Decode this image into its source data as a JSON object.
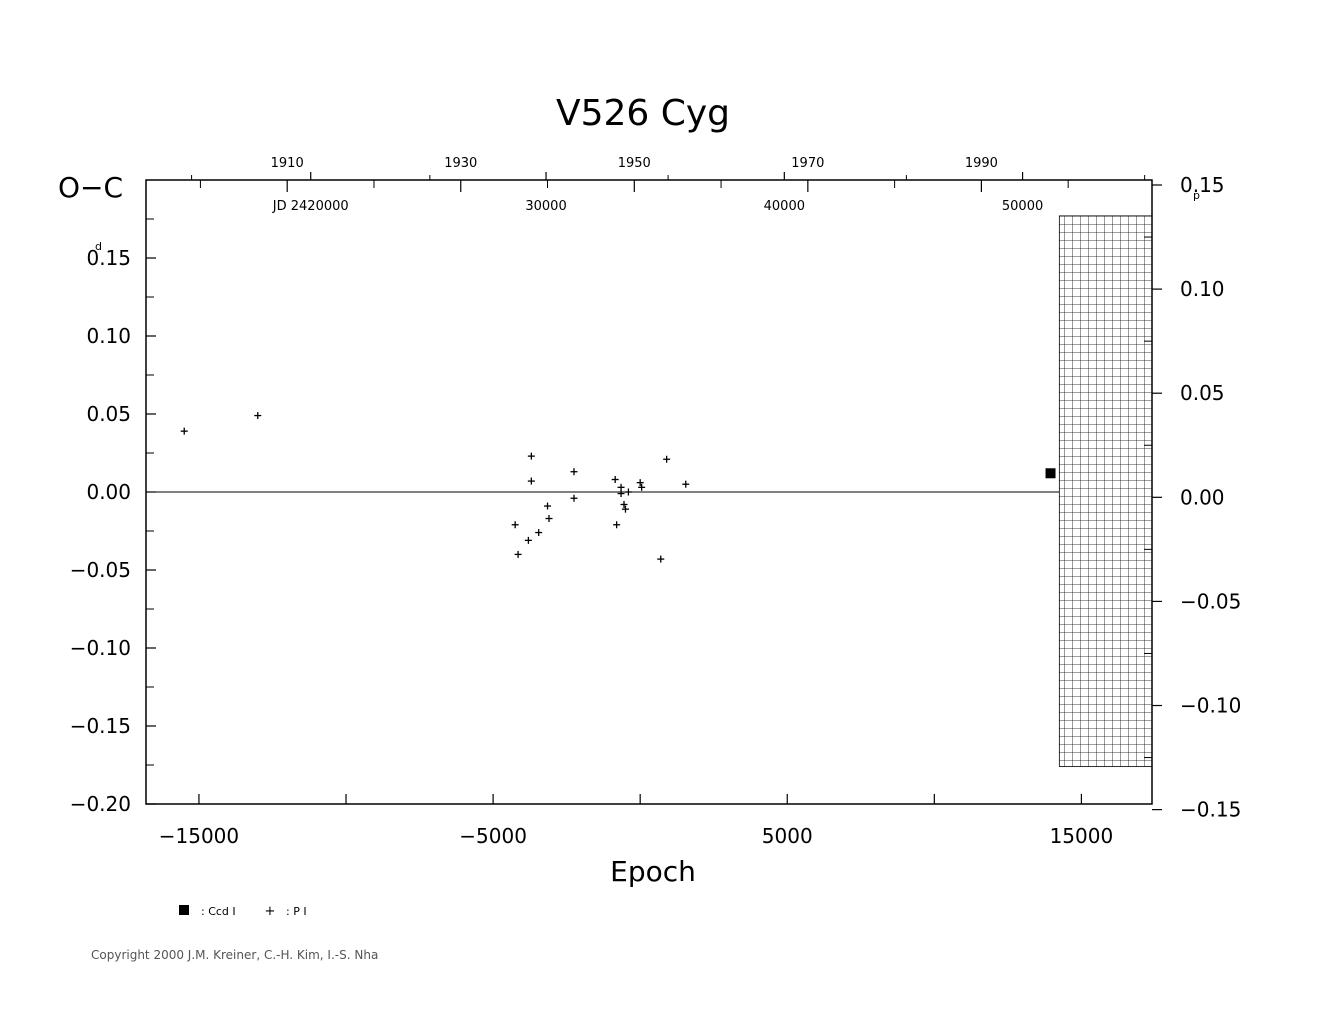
{
  "chart_data": {
    "type": "scatter",
    "title": "V526  Cyg",
    "ylabel": "O−C",
    "xlabel": "Epoch",
    "y_unit_left": "d",
    "y_unit_right": "p",
    "xlim": [
      -16800,
      17400
    ],
    "ylim": [
      -0.2,
      0.2
    ],
    "x_ticks": [
      -15000,
      -5000,
      5000,
      15000
    ],
    "x_tick_labels": [
      "−15000",
      "−5000",
      "5000",
      "15000"
    ],
    "y_ticks": [
      0.15,
      0.1,
      0.05,
      0.0,
      -0.05,
      -0.1,
      -0.15,
      -0.2
    ],
    "y_tick_labels": [
      "0.15",
      "0.10",
      "0.05",
      "0.00",
      "−0.05",
      "−0.10",
      "−0.15",
      "−0.20"
    ],
    "right_axis": {
      "ylim": [
        -0.1473,
        0.1524
      ],
      "ticks": [
        0.15,
        0.1,
        0.05,
        0.0,
        -0.05,
        -0.1,
        -0.15
      ],
      "tick_labels": [
        "0.15",
        "0.10",
        "0.05",
        "0.00",
        "−0.05",
        "−0.10",
        "−0.15"
      ]
    },
    "top_axis_years": {
      "ticks": [
        1910,
        1930,
        1950,
        1970,
        1990
      ],
      "tick_labels": [
        "1910",
        "1930",
        "1950",
        "1970",
        "1990"
      ],
      "epoch_positions": [
        -12000,
        -6100,
        -200,
        5700,
        11600
      ]
    },
    "top_axis_jd": {
      "ticks": [
        20000,
        30000,
        40000,
        50000
      ],
      "tick_labels": [
        "JD  2420000",
        "30000",
        "40000",
        "50000"
      ],
      "epoch_positions": [
        -11200,
        -3200,
        4900,
        13000
      ]
    },
    "shaded_region": {
      "x_from": 14250,
      "x_to": 17400,
      "y_from": -0.176,
      "y_to": 0.177
    },
    "zero_line": 0.0,
    "legend": [
      {
        "symbol": "square",
        "label": ": Ccd  I"
      },
      {
        "symbol": "plus",
        "label": ": P  I"
      }
    ],
    "series": [
      {
        "name": "Ccd I",
        "marker": "square",
        "points": [
          [
            13950,
            0.012
          ]
        ]
      },
      {
        "name": "P I",
        "marker": "plus",
        "points": [
          [
            -15500,
            0.039
          ],
          [
            -13000,
            0.049
          ],
          [
            -4250,
            -0.021
          ],
          [
            -4150,
            -0.04
          ],
          [
            -3800,
            -0.031
          ],
          [
            -3700,
            0.023
          ],
          [
            -3700,
            0.007
          ],
          [
            -3450,
            -0.026
          ],
          [
            -3150,
            -0.009
          ],
          [
            -3100,
            -0.017
          ],
          [
            -2250,
            0.013
          ],
          [
            -2250,
            -0.004
          ],
          [
            -850,
            0.008
          ],
          [
            -800,
            -0.021
          ],
          [
            -650,
            0.003
          ],
          [
            -650,
            -0.001
          ],
          [
            -550,
            -0.008
          ],
          [
            -500,
            -0.011
          ],
          [
            -400,
            0.0
          ],
          [
            0,
            0.006
          ],
          [
            50,
            0.003
          ],
          [
            700,
            -0.043
          ],
          [
            900,
            0.021
          ],
          [
            1550,
            0.005
          ]
        ]
      }
    ]
  },
  "copyright": "Copyright 2000 J.M. Kreiner, C.-H. Kim, I.-S. Nha"
}
